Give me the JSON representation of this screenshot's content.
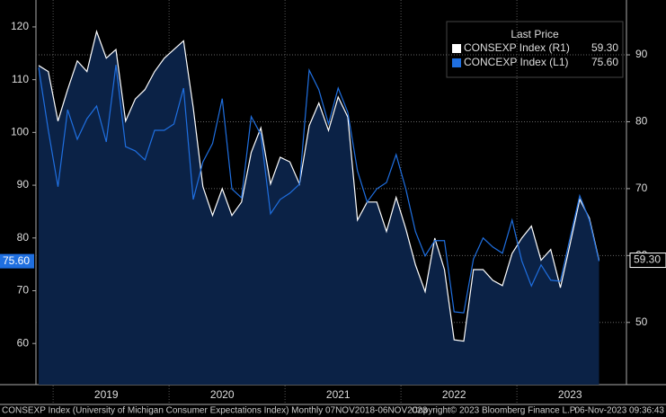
{
  "chart_data": {
    "type": "line",
    "legend_title": "Last Price",
    "categories": [
      null,
      null,
      null,
      null,
      null,
      null,
      null,
      "2019",
      null,
      null,
      null,
      null,
      null,
      null,
      null,
      null,
      null,
      null,
      null,
      "2020",
      null,
      null,
      null,
      null,
      null,
      null,
      null,
      null,
      null,
      null,
      null,
      "2021",
      null,
      null,
      null,
      null,
      null,
      null,
      null,
      null,
      null,
      null,
      null,
      "2022",
      null,
      null,
      null,
      null,
      null,
      null,
      null,
      null,
      null,
      null,
      null,
      "2023",
      null,
      null,
      null
    ],
    "series": [
      {
        "name": "CONSEXP Index (R1)",
        "color": "#ffffff",
        "axis": "y2",
        "last_price": "59.30",
        "values": [
          88.4,
          87.5,
          80.1,
          84.8,
          89.1,
          87.5,
          93.5,
          89.5,
          90.8,
          80.1,
          83.4,
          84.8,
          87.5,
          89.5,
          90.8,
          92.1,
          82.1,
          70.3,
          66.0,
          70.0,
          66.0,
          68.0,
          75.4,
          79.1,
          70.7,
          74.7,
          74.0,
          70.7,
          79.4,
          82.8,
          78.7,
          83.7,
          80.7,
          65.3,
          68.0,
          68.0,
          63.6,
          68.7,
          64.0,
          58.6,
          54.6,
          62.6,
          57.9,
          47.4,
          47.2,
          57.9,
          57.9,
          56.3,
          55.5,
          60.3,
          62.6,
          64.4,
          59.3,
          60.9,
          55.2,
          61.7,
          68.4,
          65.6,
          59.3
        ]
      },
      {
        "name": "CONCEXP Index (L1)",
        "color": "#1f6fe0",
        "last_price": "75.60",
        "values": [
          112.3,
          100.4,
          89.7,
          104.3,
          98.7,
          102.6,
          105.0,
          98.2,
          112.8,
          97.3,
          96.5,
          94.8,
          100.4,
          100.4,
          101.6,
          108.4,
          87.3,
          94.4,
          97.9,
          106.4,
          89.3,
          87.6,
          103.0,
          99.6,
          84.6,
          87.3,
          88.5,
          90.2,
          111.8,
          108.1,
          101.6,
          108.4,
          103.8,
          92.7,
          86.8,
          89.3,
          90.5,
          95.8,
          89.3,
          81.2,
          76.6,
          79.5,
          79.5,
          66.0,
          65.8,
          76.0,
          80.0,
          78.3,
          77.1,
          83.4,
          75.7,
          70.9,
          74.9,
          72.0,
          71.8,
          80.0,
          88.0,
          83.4,
          75.6
        ]
      }
    ],
    "ylim": [
      52.2,
      125.1
    ],
    "yticks": [
      60,
      70,
      80,
      90,
      100,
      110,
      120
    ],
    "y2lim": [
      40.7,
      98.2
    ],
    "y2ticks": [
      50,
      60,
      70,
      80,
      90
    ],
    "grid": "y2",
    "footer": {
      "left": "CONSEXP Index (University of Michigan Consumer Expectations Index) Monthly 07NOV2018-06NOV2023",
      "middle": "Copyright© 2023 Bloomberg Finance L.P.",
      "right": "06-Nov-2023 09:36:43"
    }
  }
}
